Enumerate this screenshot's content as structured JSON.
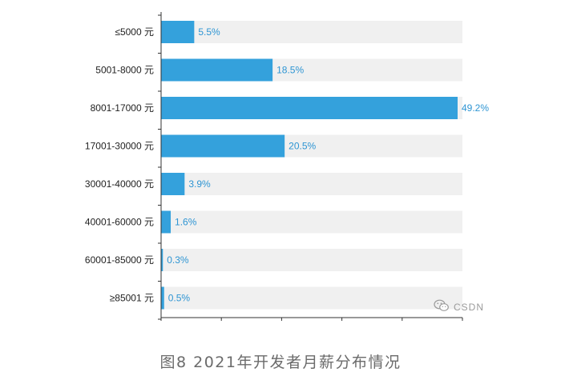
{
  "chart_data": {
    "type": "bar",
    "orientation": "horizontal",
    "categories": [
      "≤5000 元",
      "5001-8000 元",
      "8001-17000 元",
      "17001-30000 元",
      "30001-40000 元",
      "40001-60000 元",
      "60001-85000 元",
      "≥85001 元"
    ],
    "values": [
      5.5,
      18.5,
      49.2,
      20.5,
      3.9,
      1.6,
      0.3,
      0.5
    ],
    "value_labels": [
      "5.5%",
      "18.5%",
      "49.2%",
      "20.5%",
      "3.9%",
      "1.6%",
      "0.3%",
      "0.5%"
    ],
    "xlim": [
      0,
      50
    ],
    "grid": false,
    "colors": {
      "bar": "#34a1dc",
      "track": "#f0f0f0",
      "axis": "#333333",
      "value_text": "#2e95d3"
    }
  },
  "watermark": {
    "icon": "wechat-icon",
    "text": "CSDN"
  },
  "caption": "图8 2021年开发者月薪分布情况"
}
